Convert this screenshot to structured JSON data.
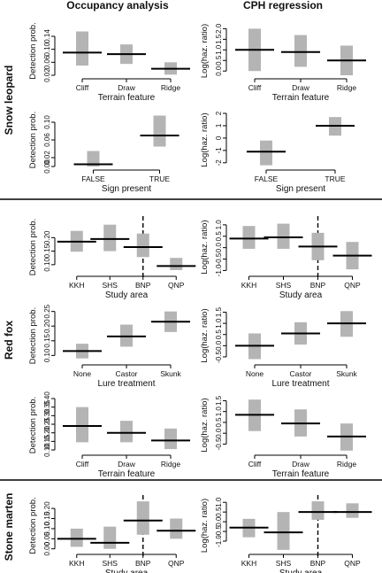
{
  "column_titles": [
    "Occupancy analysis",
    "CPH regression"
  ],
  "groups": [
    {
      "species": "Snow leopard",
      "rows": [
        0,
        1
      ]
    },
    {
      "species": "Red fox",
      "rows": [
        2,
        3,
        4
      ]
    },
    {
      "species": "Stone marten",
      "rows": [
        5
      ]
    }
  ],
  "colors": {
    "bar": "#b4b4b4",
    "line": "#000000",
    "axis": "#000000"
  },
  "chart_data": [
    {
      "type": "box",
      "row": 0,
      "col": 0,
      "ylabel": "Detection prob.",
      "xlabel": "Terrain feature",
      "categories": [
        "Cliff",
        "Draw",
        "Ridge"
      ],
      "estimate": [
        0.09,
        0.085,
        0.04
      ],
      "lower": [
        0.05,
        0.055,
        0.022
      ],
      "upper": [
        0.155,
        0.115,
        0.06
      ],
      "ylim": [
        0.02,
        0.17
      ],
      "yticks": [
        0.02,
        0.06,
        0.1,
        0.14
      ],
      "yticklabels": [
        "0.02",
        "0.06",
        "0.10",
        "0.14"
      ],
      "dividers": []
    },
    {
      "type": "box",
      "row": 0,
      "col": 1,
      "ylabel": "Log(haz. ratio)",
      "xlabel": "Terrain feature",
      "categories": [
        "Cliff",
        "Draw",
        "Ridge"
      ],
      "estimate": [
        1.0,
        0.9,
        0.5
      ],
      "lower": [
        0.0,
        0.2,
        -0.2
      ],
      "upper": [
        2.0,
        1.7,
        1.2
      ],
      "ylim": [
        -0.2,
        2.1
      ],
      "yticks": [
        0,
        0.5,
        1.0,
        1.5,
        2.0
      ],
      "yticklabels": [
        "0.0",
        "0.5",
        "1.0",
        "1.5",
        "2.0"
      ],
      "dividers": []
    },
    {
      "type": "box",
      "row": 1,
      "col": 0,
      "ylabel": "Detection prob.",
      "xlabel": "Sign present",
      "categories": [
        "FALSE",
        "TRUE"
      ],
      "estimate": [
        0.005,
        0.07
      ],
      "lower": [
        0.0,
        0.045
      ],
      "upper": [
        0.035,
        0.115
      ],
      "ylim": [
        0.0,
        0.12
      ],
      "yticks": [
        0.0,
        0.02,
        0.06,
        0.1
      ],
      "yticklabels": [
        "0.00",
        "0.02",
        "0.06",
        "0.10"
      ],
      "dividers": []
    },
    {
      "type": "box",
      "row": 1,
      "col": 1,
      "ylabel": "Log(haz. ratio)",
      "xlabel": "Sign present",
      "categories": [
        "FALSE",
        "TRUE"
      ],
      "estimate": [
        -1.1,
        1.0
      ],
      "lower": [
        -2.2,
        0.2
      ],
      "upper": [
        -0.2,
        1.7
      ],
      "ylim": [
        -2.3,
        2.0
      ],
      "yticks": [
        -2,
        -1,
        0,
        1,
        2
      ],
      "yticklabels": [
        "-2",
        "-1",
        "0",
        "1",
        "2"
      ],
      "dividers": []
    },
    {
      "type": "box",
      "row": 2,
      "col": 0,
      "ylabel": "Detection prob.",
      "xlabel": "Study area",
      "categories": [
        "KKH",
        "SHS",
        "BNP",
        "QNP"
      ],
      "estimate": [
        0.185,
        0.195,
        0.165,
        0.095
      ],
      "lower": [
        0.148,
        0.15,
        0.128,
        0.08
      ],
      "upper": [
        0.225,
        0.248,
        0.215,
        0.125
      ],
      "ylim": [
        0.07,
        0.26
      ],
      "yticks": [
        0.1,
        0.15,
        0.2
      ],
      "yticklabels": [
        "0.10",
        "0.15",
        "0.20"
      ],
      "dividers": [
        2.5
      ]
    },
    {
      "type": "box",
      "row": 2,
      "col": 1,
      "ylabel": "Log(haz. ratio)",
      "xlabel": "Study area",
      "categories": [
        "KKH",
        "SHS",
        "BNP",
        "QNP"
      ],
      "estimate": [
        0.4,
        0.45,
        0.05,
        -0.35
      ],
      "lower": [
        -0.05,
        -0.05,
        -0.55,
        -0.95
      ],
      "upper": [
        0.95,
        1.05,
        0.65,
        0.25
      ],
      "ylim": [
        -1.1,
        1.15
      ],
      "yticks": [
        -1.0,
        -0.5,
        0,
        0.5,
        1.0
      ],
      "yticklabels": [
        "-1.0",
        "-0.5",
        "0.0",
        "0.5",
        "1.0"
      ],
      "dividers": [
        2.5
      ]
    },
    {
      "type": "box",
      "row": 3,
      "col": 0,
      "ylabel": "Detection prob.",
      "xlabel": "Lure treatment",
      "categories": [
        "None",
        "Castor",
        "Skunk"
      ],
      "estimate": [
        0.115,
        0.165,
        0.215
      ],
      "lower": [
        0.09,
        0.13,
        0.18
      ],
      "upper": [
        0.14,
        0.205,
        0.25
      ],
      "ylim": [
        0.08,
        0.255
      ],
      "yticks": [
        0.1,
        0.15,
        0.2,
        0.25
      ],
      "yticklabels": [
        "0.10",
        "0.15",
        "0.20",
        "0.25"
      ],
      "dividers": []
    },
    {
      "type": "box",
      "row": 3,
      "col": 1,
      "ylabel": "Log(haz. ratio)",
      "xlabel": "Lure treatment",
      "categories": [
        "None",
        "Castor",
        "Skunk"
      ],
      "estimate": [
        0.0,
        0.55,
        1.0
      ],
      "lower": [
        -0.6,
        0.05,
        0.4
      ],
      "upper": [
        0.55,
        1.05,
        1.55
      ],
      "ylim": [
        -0.7,
        1.6
      ],
      "yticks": [
        -0.5,
        0,
        0.5,
        1.0,
        1.5
      ],
      "yticklabels": [
        "-0.5",
        "0.0",
        "0.5",
        "1.0",
        "1.5"
      ],
      "dividers": []
    },
    {
      "type": "box",
      "row": 4,
      "col": 0,
      "ylabel": "Detection prob.",
      "xlabel": "Terrain feature",
      "categories": [
        "Cliff",
        "Draw",
        "Ridge"
      ],
      "estimate": [
        0.24,
        0.2,
        0.155
      ],
      "lower": [
        0.145,
        0.145,
        0.105
      ],
      "upper": [
        0.35,
        0.27,
        0.225
      ],
      "ylim": [
        0.09,
        0.4
      ],
      "yticks": [
        0.1,
        0.15,
        0.2,
        0.25,
        0.3,
        0.35,
        0.4
      ],
      "yticklabels": [
        "0.10",
        "0.15",
        "0.20",
        "0.25",
        "0.30",
        "0.35",
        "0.40"
      ],
      "dividers": []
    },
    {
      "type": "box",
      "row": 4,
      "col": 1,
      "ylabel": "Log(haz. ratio)",
      "xlabel": "Terrain feature",
      "categories": [
        "Cliff",
        "Draw",
        "Ridge"
      ],
      "estimate": [
        0.85,
        0.45,
        -0.15
      ],
      "lower": [
        0.1,
        -0.15,
        -0.8
      ],
      "upper": [
        1.55,
        1.1,
        0.45
      ],
      "ylim": [
        -0.85,
        1.6
      ],
      "yticks": [
        -0.5,
        0,
        0.5,
        1.0,
        1.5
      ],
      "yticklabels": [
        "-0.5",
        "0.0",
        "0.5",
        "1.0",
        "1.5"
      ],
      "dividers": []
    },
    {
      "type": "box",
      "row": 5,
      "col": 0,
      "ylabel": "Detection prob.",
      "xlabel": "Study area",
      "categories": [
        "KKH",
        "SHS",
        "BNP",
        "QNP"
      ],
      "estimate": [
        0.05,
        0.03,
        0.14,
        0.09
      ],
      "lower": [
        0.01,
        0.0,
        0.07,
        0.05
      ],
      "upper": [
        0.1,
        0.11,
        0.235,
        0.15
      ],
      "ylim": [
        -0.01,
        0.24
      ],
      "yticks": [
        0.0,
        0.05,
        0.1,
        0.15,
        0.2
      ],
      "yticklabels": [
        "0.00",
        "0.05",
        "0.10",
        "0.15",
        "0.20"
      ],
      "dividers": [
        2.5
      ]
    },
    {
      "type": "box",
      "row": 5,
      "col": 1,
      "ylabel": "Log(haz. ratio)",
      "xlabel": "Study area",
      "categories": [
        "KKH",
        "SHS",
        "BNP",
        "QNP"
      ],
      "estimate": [
        -0.3,
        -0.55,
        0.5,
        0.5
      ],
      "lower": [
        -0.8,
        -1.45,
        0.1,
        0.2
      ],
      "upper": [
        0.15,
        0.5,
        1.05,
        0.95
      ],
      "ylim": [
        -1.5,
        1.1
      ],
      "yticks": [
        -1.0,
        -0.5,
        0,
        0.5,
        1.0
      ],
      "yticklabels": [
        "-1.0",
        "-0.5",
        "0.0",
        "0.5",
        "1.0"
      ],
      "dividers": [
        2.5
      ]
    }
  ]
}
